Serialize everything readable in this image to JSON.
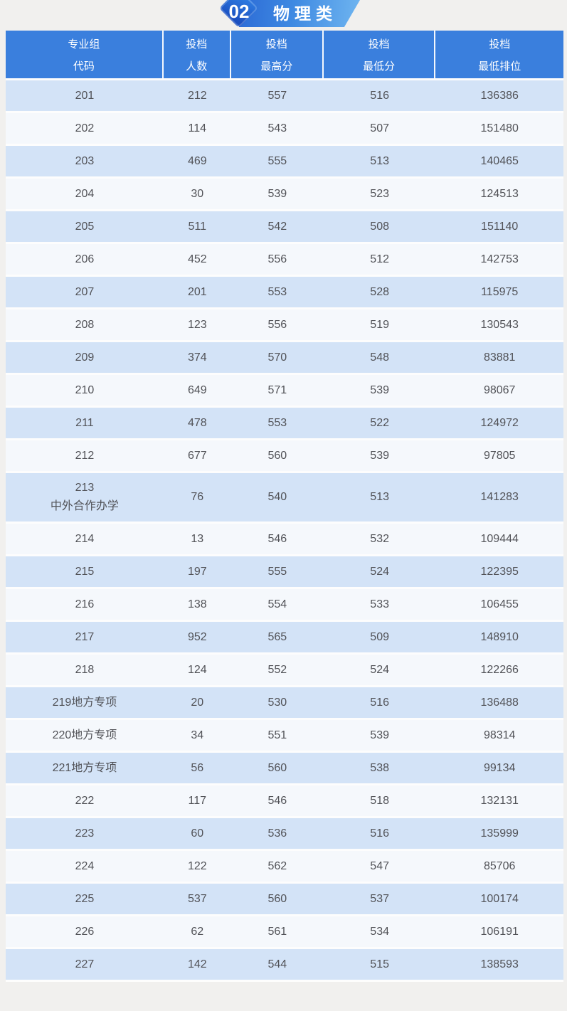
{
  "badge": {
    "number": "02",
    "title": "物理类"
  },
  "table": {
    "columns": [
      {
        "top": "专业组",
        "bottom": "代码"
      },
      {
        "top": "投档",
        "bottom": "人数"
      },
      {
        "top": "投档",
        "bottom": "最高分"
      },
      {
        "top": "投档",
        "bottom": "最低分"
      },
      {
        "top": "投档",
        "bottom": "最低排位"
      }
    ]
  },
  "chart_data": {
    "type": "table",
    "title": "02 物理类",
    "columns": [
      "专业组代码",
      "投档人数",
      "投档最高分",
      "投档最低分",
      "投档最低排位"
    ],
    "rows": [
      [
        "201",
        212,
        557,
        516,
        136386
      ],
      [
        "202",
        114,
        543,
        507,
        151480
      ],
      [
        "203",
        469,
        555,
        513,
        140465
      ],
      [
        "204",
        30,
        539,
        523,
        124513
      ],
      [
        "205",
        511,
        542,
        508,
        151140
      ],
      [
        "206",
        452,
        556,
        512,
        142753
      ],
      [
        "207",
        201,
        553,
        528,
        115975
      ],
      [
        "208",
        123,
        556,
        519,
        130543
      ],
      [
        "209",
        374,
        570,
        548,
        83881
      ],
      [
        "210",
        649,
        571,
        539,
        98067
      ],
      [
        "211",
        478,
        553,
        522,
        124972
      ],
      [
        "212",
        677,
        560,
        539,
        97805
      ],
      [
        "213\n中外合作办学",
        76,
        540,
        513,
        141283
      ],
      [
        "214",
        13,
        546,
        532,
        109444
      ],
      [
        "215",
        197,
        555,
        524,
        122395
      ],
      [
        "216",
        138,
        554,
        533,
        106455
      ],
      [
        "217",
        952,
        565,
        509,
        148910
      ],
      [
        "218",
        124,
        552,
        524,
        122266
      ],
      [
        "219地方专项",
        20,
        530,
        516,
        136488
      ],
      [
        "220地方专项",
        34,
        551,
        539,
        98314
      ],
      [
        "221地方专项",
        56,
        560,
        538,
        99134
      ],
      [
        "222",
        117,
        546,
        518,
        132131
      ],
      [
        "223",
        60,
        536,
        516,
        135999
      ],
      [
        "224",
        122,
        562,
        547,
        85706
      ],
      [
        "225",
        537,
        560,
        537,
        100174
      ],
      [
        "226",
        62,
        561,
        534,
        106191
      ],
      [
        "227",
        142,
        544,
        515,
        138593
      ]
    ],
    "colors": {
      "header_bg": "#3a7fdd",
      "row_odd_bg": "#d3e3f7",
      "row_even_bg": "#f5f8fc",
      "badge_diamond": "#1a4fc0",
      "badge_ribbon_start": "#2c6bd6",
      "badge_ribbon_end": "#6fb5f0",
      "page_bg": "#f1f0ee",
      "body_text": "#515257"
    },
    "layout": {
      "striped": true,
      "header_text_color": "#ffffff",
      "cell_align": "center"
    }
  }
}
